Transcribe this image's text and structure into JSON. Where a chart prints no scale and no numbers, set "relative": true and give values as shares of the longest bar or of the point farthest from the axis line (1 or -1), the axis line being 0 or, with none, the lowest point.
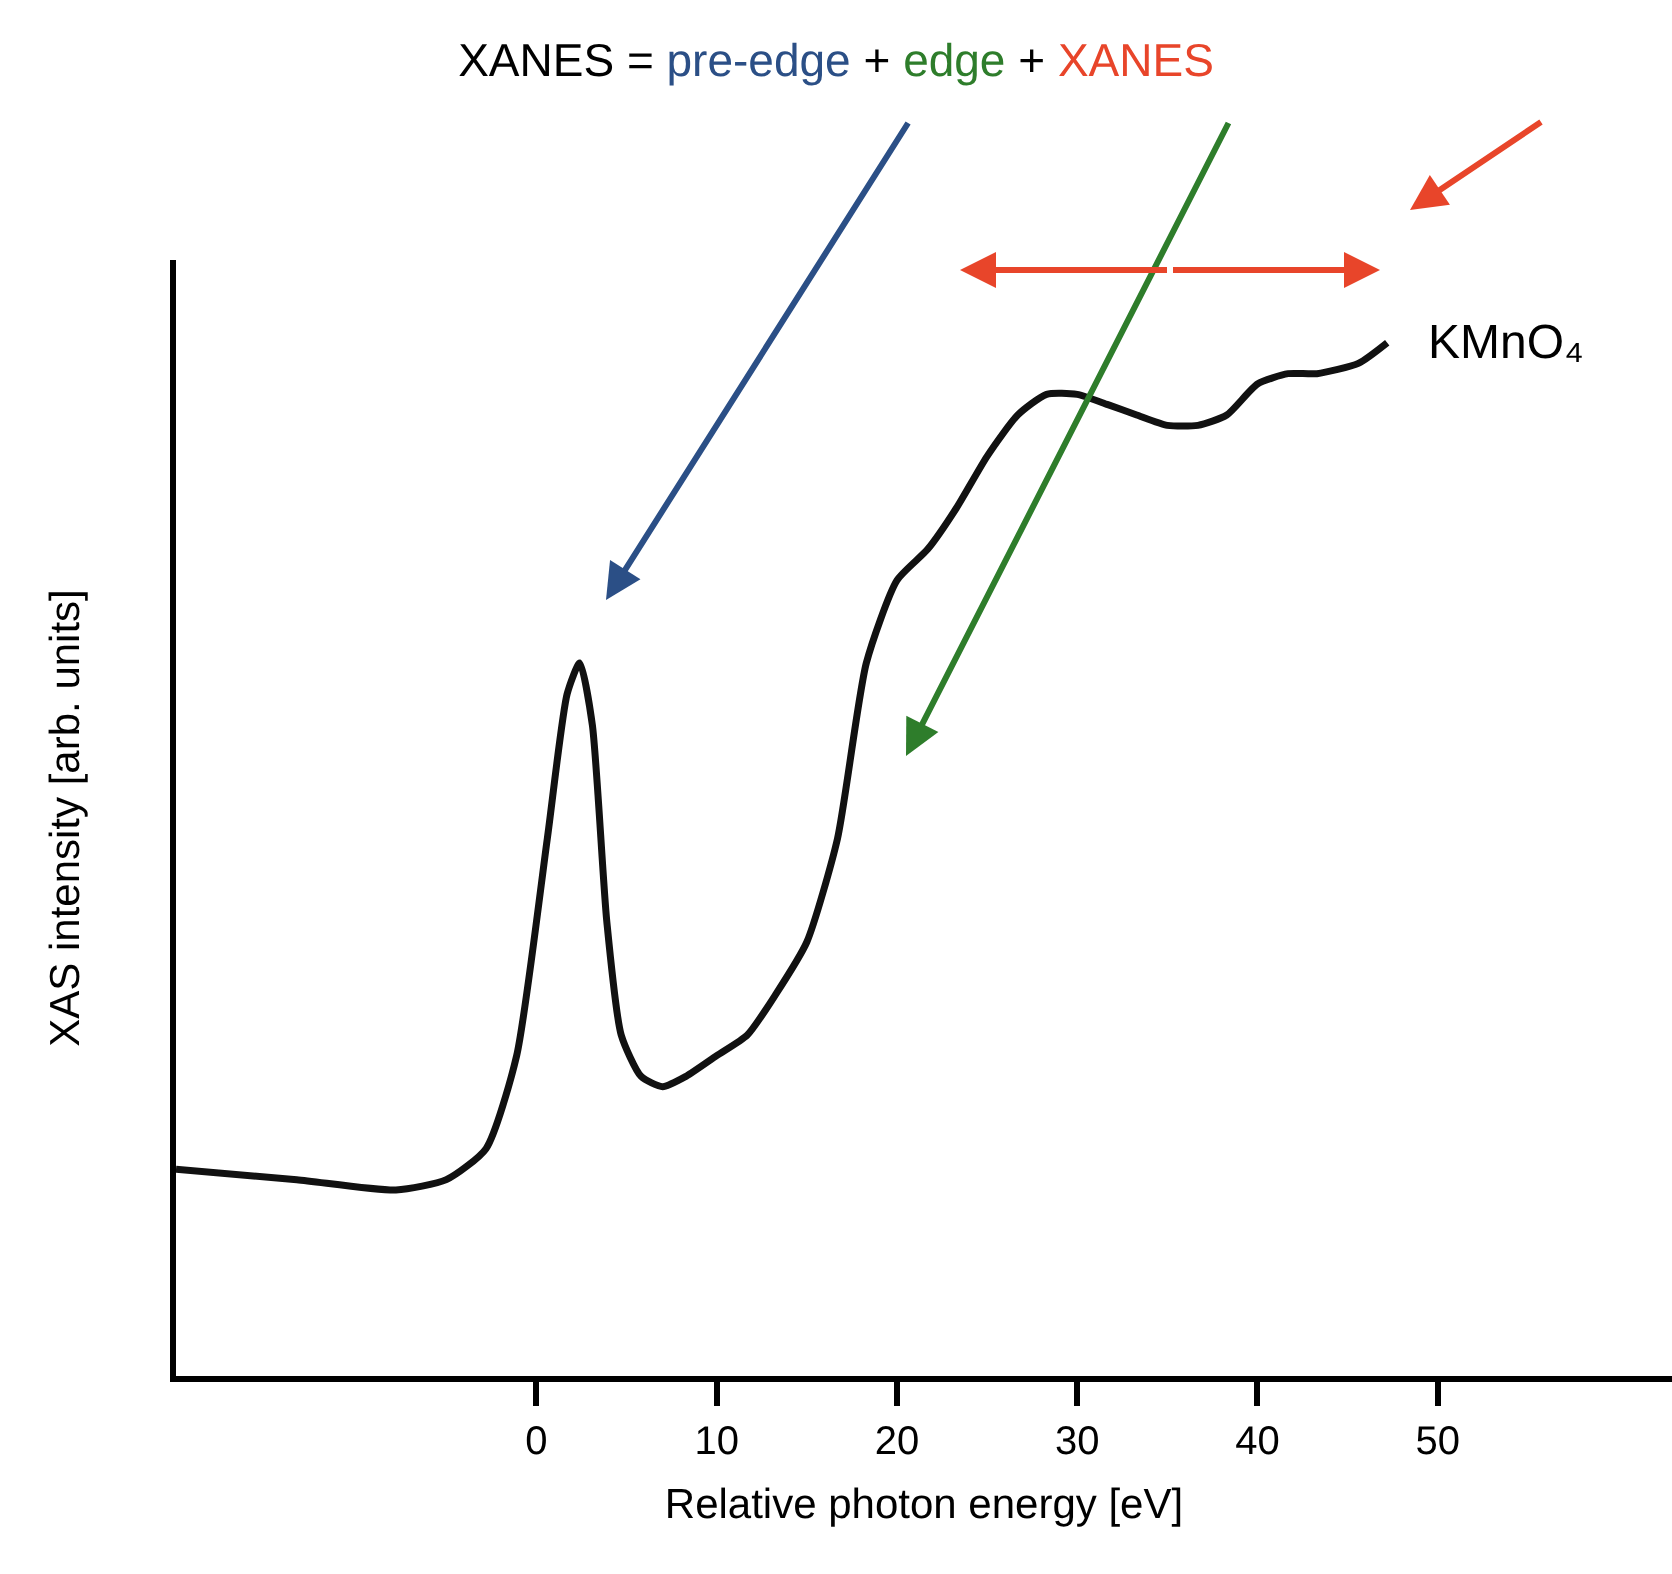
{
  "chart_data": {
    "type": "line",
    "title": "XANES = pre-edge + edge + XANES",
    "xlabel": "Relative photon energy [eV]",
    "ylabel": "XAS intensity [arb. units]",
    "relative": true,
    "x": [
      -20,
      -13.3,
      -7.8,
      -5,
      -2.8,
      -1.1,
      0.6,
      1.7,
      2.4,
      3.1,
      3.9,
      4.7,
      5.8,
      7,
      8.3,
      10,
      11.7,
      13.3,
      15,
      16.7,
      18.3,
      20,
      21.7,
      23.3,
      25,
      26.7,
      28.3,
      30,
      31.7,
      33.3,
      35,
      36.7,
      38.3,
      40,
      41.7,
      43.3,
      45.6,
      47.2
    ],
    "series": [
      {
        "color": "#111111",
        "values": [
          0.2,
          0.19,
          0.18,
          0.19,
          0.22,
          0.31,
          0.52,
          0.66,
          0.69,
          0.63,
          0.44,
          0.33,
          0.29,
          0.28,
          0.29,
          0.31,
          0.33,
          0.37,
          0.42,
          0.52,
          0.69,
          0.77,
          0.8,
          0.84,
          0.89,
          0.93,
          0.95,
          0.95,
          0.94,
          0.93,
          0.92,
          0.92,
          0.93,
          0.96,
          0.97,
          0.97,
          0.98,
          1.0
        ]
      }
    ],
    "xlim": [
      -20,
      63
    ],
    "xticks": [
      0,
      10,
      20,
      30,
      40,
      50
    ],
    "annotations": [
      {
        "text": "KMnO₄",
        "x": 47.2,
        "y": 1.0
      }
    ],
    "marker": "none",
    "line_style": "solid"
  }
}
